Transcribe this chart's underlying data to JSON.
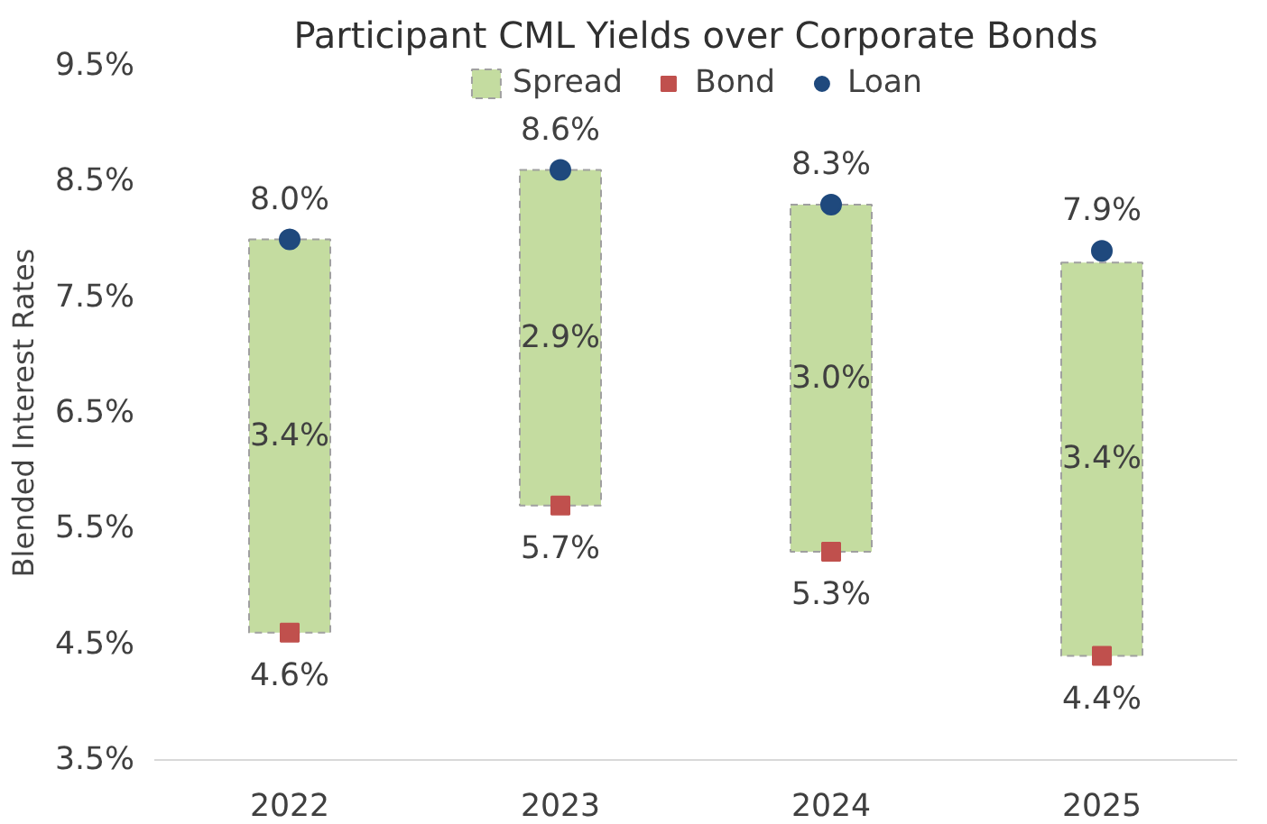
{
  "chart_data": {
    "type": "bar",
    "title": "Participant CML Yields over Corporate Bonds",
    "ylabel": "Blended Interest Rates",
    "categories": [
      "2022",
      "2023",
      "2024",
      "2025"
    ],
    "series": [
      {
        "name": "Spread",
        "color": "#c4dca0",
        "base": [
          4.6,
          5.7,
          5.3,
          4.4
        ],
        "values": [
          3.4,
          2.9,
          3.0,
          3.4
        ],
        "value_labels": [
          "3.4%",
          "2.9%",
          "3.0%",
          "3.4%"
        ],
        "line_style": "dashed"
      },
      {
        "name": "Bond",
        "type": "scatter",
        "marker": "square",
        "color": "#c0504d",
        "values": [
          4.6,
          5.7,
          5.3,
          4.4
        ],
        "value_labels": [
          "4.6%",
          "5.7%",
          "5.3%",
          "4.4%"
        ]
      },
      {
        "name": "Loan",
        "type": "scatter",
        "marker": "circle",
        "color": "#1f497d",
        "values": [
          8.0,
          8.6,
          8.3,
          7.9
        ],
        "value_labels": [
          "8.0%",
          "8.6%",
          "8.3%",
          "7.9%"
        ]
      }
    ],
    "ylim": [
      3.5,
      9.5
    ],
    "yticks": [
      {
        "value": 3.5,
        "label": "3.5%"
      },
      {
        "value": 4.5,
        "label": "4.5%"
      },
      {
        "value": 5.5,
        "label": "5.5%"
      },
      {
        "value": 6.5,
        "label": "6.5%"
      },
      {
        "value": 7.5,
        "label": "7.5%"
      },
      {
        "value": 8.5,
        "label": "8.5%"
      },
      {
        "value": 9.5,
        "label": "9.5%"
      }
    ],
    "grid": false,
    "legend": "top"
  }
}
